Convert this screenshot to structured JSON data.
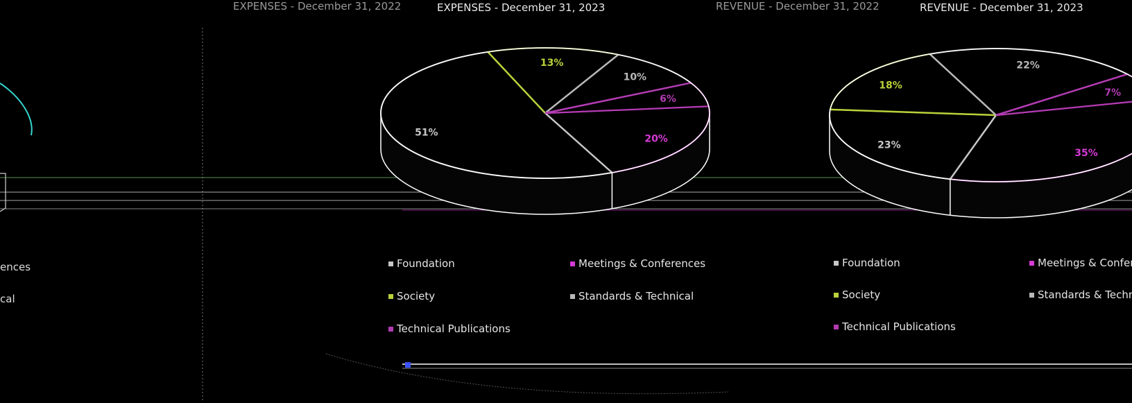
{
  "colors": {
    "background": "#000000",
    "foundation": "#c7c7c7",
    "meetings": "#d63bd6",
    "society": "#b9d13b",
    "standards": "#b8b8b8",
    "technical_publications": "#b23bb2",
    "outline": "#ffffff",
    "cyan": "#35d6d0"
  },
  "headers": {
    "left_expenses_ghost": "EXPENSES - December 31, 2022",
    "mid_expenses_title": "EXPENSES - December 31, 2023",
    "right_revenue_ghost": "REVENUE - December 31, 2022",
    "right_revenue_title": "REVENUE - December 31, 2023"
  },
  "left_partial_legend": [
    "ences",
    "cal"
  ],
  "chart_data": [
    {
      "type": "pie",
      "title": "EXPENSES - December 31, 2023",
      "slices": [
        {
          "name": "Meetings & Conferences",
          "value": 20,
          "label": "20%",
          "color": "#d63bd6"
        },
        {
          "name": "Foundation",
          "value": 51,
          "label": "51%",
          "color": "#c7c7c7"
        },
        {
          "name": "Society",
          "value": 13,
          "label": "13%",
          "color": "#b9d13b"
        },
        {
          "name": "Standards & Technical",
          "value": 10,
          "label": "10%",
          "color": "#b8b8b8"
        },
        {
          "name": "Technical Publications",
          "value": 6,
          "label": "6%",
          "color": "#b23bb2"
        }
      ],
      "legend": [
        "Foundation",
        "Meetings & Conferences",
        "Society",
        "Standards & Technical",
        "Technical Publications"
      ],
      "legend_position": "bottom"
    },
    {
      "type": "pie",
      "title": "REVENUE - December 31, 2023",
      "slices": [
        {
          "name": "Meetings & Conferences",
          "value": 35,
          "label": "35%",
          "color": "#d63bd6"
        },
        {
          "name": "Foundation",
          "value": 23,
          "label": "23%",
          "color": "#c7c7c7"
        },
        {
          "name": "Society",
          "value": 18,
          "label": "18%",
          "color": "#b9d13b"
        },
        {
          "name": "Standards & Technical",
          "value": 22,
          "label": "22%",
          "color": "#b8b8b8"
        },
        {
          "name": "Technical Publications",
          "value": 7,
          "label": "7%",
          "color": "#b23bb2"
        }
      ],
      "legend": [
        "Foundation",
        "Meetings & Conferences",
        "Society",
        "Standards & Technical",
        "Technical Publications"
      ],
      "legend_position": "bottom"
    }
  ]
}
